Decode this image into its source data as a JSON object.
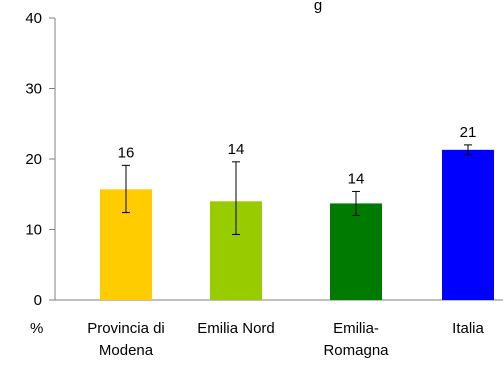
{
  "chart_data": {
    "type": "bar",
    "title_fragment": "g",
    "yunit": "%",
    "ylim": [
      0,
      40
    ],
    "yticks": [
      "0",
      "10",
      "20",
      "30",
      "40"
    ],
    "categories": [
      [
        "Provincia di",
        "Modena"
      ],
      [
        "Emilia Nord"
      ],
      [
        "Emilia-",
        "Romagna"
      ],
      [
        "Italia"
      ]
    ],
    "values": [
      15.7,
      14.0,
      13.7,
      21.3
    ],
    "data_labels": [
      "16",
      "14",
      "14",
      "21"
    ],
    "error_low": [
      12.4,
      9.3,
      12.0,
      20.6
    ],
    "error_high": [
      19.1,
      19.6,
      15.4,
      22.0
    ],
    "colors": [
      "#FFCC00",
      "#99CC00",
      "#007A00",
      "#0000FF"
    ],
    "grid": false,
    "legend": "none"
  }
}
